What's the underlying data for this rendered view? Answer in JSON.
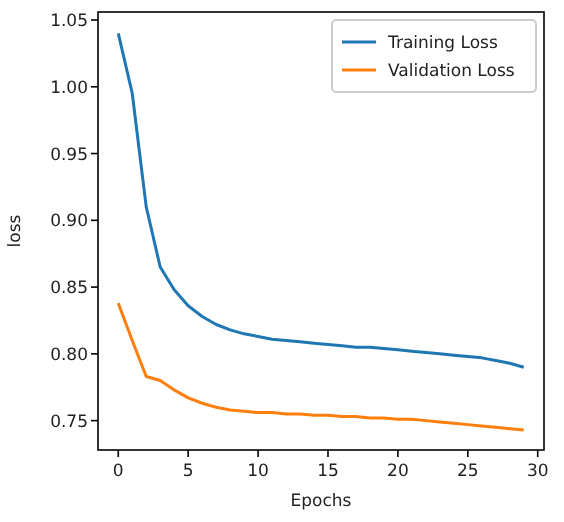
{
  "chart_data": {
    "type": "line",
    "xlabel": "Epochs",
    "ylabel": "loss",
    "x": [
      0,
      1,
      2,
      3,
      4,
      5,
      6,
      7,
      8,
      9,
      10,
      11,
      12,
      13,
      14,
      15,
      16,
      17,
      18,
      19,
      20,
      21,
      22,
      23,
      24,
      25,
      26,
      27,
      28,
      29
    ],
    "series": [
      {
        "name": "Training Loss",
        "color": "#1f77b4",
        "values": [
          1.04,
          0.995,
          0.91,
          0.865,
          0.848,
          0.836,
          0.828,
          0.822,
          0.818,
          0.815,
          0.813,
          0.811,
          0.81,
          0.809,
          0.808,
          0.807,
          0.806,
          0.805,
          0.805,
          0.804,
          0.803,
          0.802,
          0.801,
          0.8,
          0.799,
          0.798,
          0.797,
          0.795,
          0.793,
          0.79
        ]
      },
      {
        "name": "Validation Loss",
        "color": "#ff7f0e",
        "values": [
          0.838,
          0.81,
          0.783,
          0.78,
          0.773,
          0.767,
          0.763,
          0.76,
          0.758,
          0.757,
          0.756,
          0.756,
          0.755,
          0.755,
          0.754,
          0.754,
          0.753,
          0.753,
          0.752,
          0.752,
          0.751,
          0.751,
          0.75,
          0.749,
          0.748,
          0.747,
          0.746,
          0.745,
          0.744,
          0.743
        ]
      }
    ],
    "xlim": [
      -1.45,
      30.45
    ],
    "xticks": [
      0,
      5,
      10,
      15,
      20,
      25,
      30
    ],
    "ylim": [
      0.728,
      1.056
    ],
    "yticks": [
      {
        "value": 0.75,
        "label": "0.75"
      },
      {
        "value": 0.8,
        "label": "0.80"
      },
      {
        "value": 0.85,
        "label": "0.85"
      },
      {
        "value": 0.9,
        "label": "0.90"
      },
      {
        "value": 0.95,
        "label": "0.95"
      },
      {
        "value": 1.0,
        "label": "1.00"
      },
      {
        "value": 1.05,
        "label": "1.05"
      }
    ],
    "legend": "top right"
  }
}
